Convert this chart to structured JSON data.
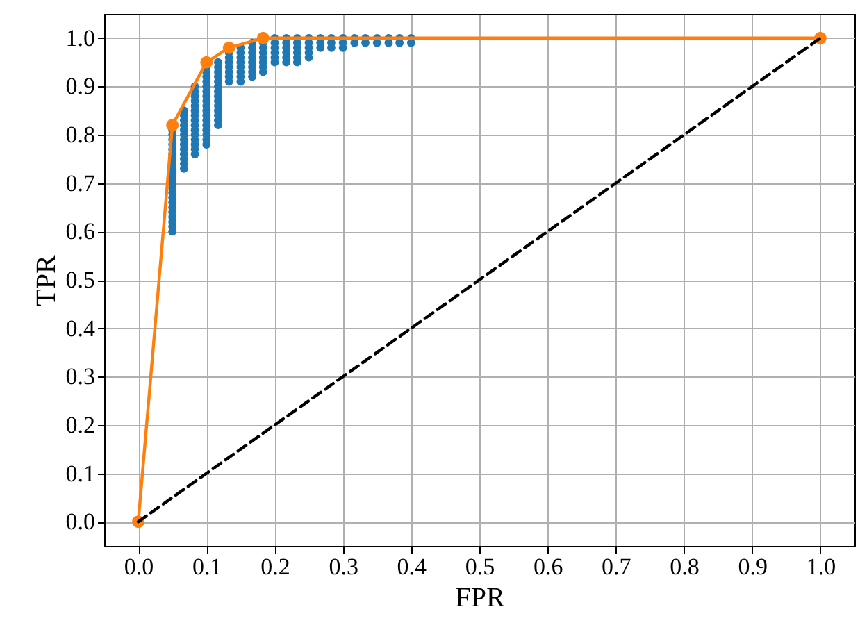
{
  "chart_data": {
    "type": "scatter",
    "xlabel": "FPR",
    "ylabel": "TPR",
    "xlim": [
      -0.05,
      1.05
    ],
    "ylim": [
      -0.05,
      1.05
    ],
    "xticks": [
      {
        "value": 0,
        "label": "0.0"
      },
      {
        "value": 0.1,
        "label": "0.1"
      },
      {
        "value": 0.2,
        "label": "0.2"
      },
      {
        "value": 0.3,
        "label": "0.3"
      },
      {
        "value": 0.4,
        "label": "0.4"
      },
      {
        "value": 0.5,
        "label": "0.5"
      },
      {
        "value": 0.6,
        "label": "0.6"
      },
      {
        "value": 0.7,
        "label": "0.7"
      },
      {
        "value": 0.8,
        "label": "0.8"
      },
      {
        "value": 0.9,
        "label": "0.9"
      },
      {
        "value": 1,
        "label": "1.0"
      }
    ],
    "yticks": [
      {
        "value": 0,
        "label": "0.0"
      },
      {
        "value": 0.1,
        "label": "0.1"
      },
      {
        "value": 0.2,
        "label": "0.2"
      },
      {
        "value": 0.3,
        "label": "0.3"
      },
      {
        "value": 0.4,
        "label": "0.4"
      },
      {
        "value": 0.5,
        "label": "0.5"
      },
      {
        "value": 0.6,
        "label": "0.6"
      },
      {
        "value": 0.7,
        "label": "0.7"
      },
      {
        "value": 0.8,
        "label": "0.8"
      },
      {
        "value": 0.9,
        "label": "0.9"
      },
      {
        "value": 1,
        "label": "1.0"
      }
    ],
    "grid": true,
    "series": [
      {
        "type": "scatter",
        "color": "#1f77b4",
        "marker": "circle",
        "x": [
          0.05,
          0.05,
          0.05,
          0.05,
          0.05,
          0.05,
          0.05,
          0.05,
          0.05,
          0.05,
          0.05,
          0.05,
          0.05,
          0.05,
          0.05,
          0.05,
          0.05,
          0.05,
          0.05,
          0.05,
          0.05,
          0.05,
          0.067,
          0.067,
          0.067,
          0.067,
          0.067,
          0.067,
          0.067,
          0.067,
          0.067,
          0.067,
          0.067,
          0.067,
          0.067,
          0.083,
          0.083,
          0.083,
          0.083,
          0.083,
          0.083,
          0.083,
          0.083,
          0.083,
          0.083,
          0.083,
          0.083,
          0.083,
          0.083,
          0.083,
          0.1,
          0.1,
          0.1,
          0.1,
          0.1,
          0.1,
          0.1,
          0.1,
          0.1,
          0.1,
          0.1,
          0.1,
          0.1,
          0.1,
          0.1,
          0.1,
          0.1,
          0.117,
          0.117,
          0.117,
          0.117,
          0.117,
          0.117,
          0.117,
          0.117,
          0.117,
          0.117,
          0.117,
          0.117,
          0.117,
          0.117,
          0.133,
          0.133,
          0.133,
          0.133,
          0.133,
          0.133,
          0.133,
          0.15,
          0.15,
          0.15,
          0.15,
          0.15,
          0.15,
          0.15,
          0.15,
          0.167,
          0.167,
          0.167,
          0.167,
          0.167,
          0.167,
          0.167,
          0.167,
          0.183,
          0.183,
          0.183,
          0.183,
          0.183,
          0.183,
          0.183,
          0.2,
          0.2,
          0.2,
          0.2,
          0.2,
          0.2,
          0.217,
          0.217,
          0.217,
          0.217,
          0.217,
          0.217,
          0.233,
          0.233,
          0.233,
          0.233,
          0.233,
          0.233,
          0.25,
          0.25,
          0.25,
          0.25,
          0.25,
          0.267,
          0.267,
          0.267,
          0.283,
          0.283,
          0.283,
          0.3,
          0.3,
          0.3,
          0.317,
          0.317,
          0.333,
          0.333,
          0.35,
          0.35,
          0.367,
          0.367,
          0.383,
          0.383,
          0.4,
          0.4
        ],
        "values": [
          0.6,
          0.61,
          0.62,
          0.63,
          0.64,
          0.65,
          0.66,
          0.67,
          0.68,
          0.69,
          0.7,
          0.71,
          0.72,
          0.73,
          0.74,
          0.75,
          0.76,
          0.77,
          0.78,
          0.79,
          0.8,
          0.81,
          0.73,
          0.74,
          0.75,
          0.76,
          0.77,
          0.78,
          0.79,
          0.8,
          0.81,
          0.82,
          0.83,
          0.84,
          0.85,
          0.76,
          0.77,
          0.78,
          0.79,
          0.8,
          0.81,
          0.82,
          0.83,
          0.84,
          0.85,
          0.86,
          0.87,
          0.88,
          0.89,
          0.9,
          0.78,
          0.79,
          0.8,
          0.81,
          0.82,
          0.83,
          0.84,
          0.85,
          0.86,
          0.87,
          0.88,
          0.89,
          0.9,
          0.91,
          0.92,
          0.93,
          0.94,
          0.82,
          0.83,
          0.84,
          0.85,
          0.86,
          0.87,
          0.88,
          0.89,
          0.9,
          0.91,
          0.92,
          0.93,
          0.94,
          0.95,
          0.91,
          0.92,
          0.93,
          0.94,
          0.95,
          0.96,
          0.97,
          0.91,
          0.92,
          0.93,
          0.94,
          0.95,
          0.96,
          0.97,
          0.98,
          0.92,
          0.93,
          0.94,
          0.95,
          0.96,
          0.97,
          0.98,
          0.99,
          0.93,
          0.94,
          0.95,
          0.96,
          0.97,
          0.98,
          0.99,
          0.95,
          0.96,
          0.97,
          0.98,
          0.99,
          1.0,
          0.95,
          0.96,
          0.97,
          0.98,
          0.99,
          1.0,
          0.95,
          0.96,
          0.97,
          0.98,
          0.99,
          1.0,
          0.96,
          0.97,
          0.98,
          0.99,
          1.0,
          0.98,
          0.99,
          1.0,
          0.98,
          0.99,
          1.0,
          0.98,
          0.99,
          1.0,
          0.99,
          1.0,
          0.99,
          1.0,
          0.99,
          1.0,
          0.99,
          1.0,
          0.99,
          1.0,
          0.99,
          1.0
        ]
      },
      {
        "type": "line",
        "color": "#ff7f0e",
        "marker": "circle",
        "line_style": "solid",
        "x": [
          0,
          0.05,
          0.1,
          0.133,
          0.183,
          1
        ],
        "values": [
          0,
          0.82,
          0.95,
          0.98,
          1.0,
          1.0
        ]
      },
      {
        "type": "line",
        "color": "#000000",
        "marker": "none",
        "line_style": "dashed",
        "x": [
          0,
          1
        ],
        "values": [
          0,
          1
        ]
      }
    ]
  }
}
